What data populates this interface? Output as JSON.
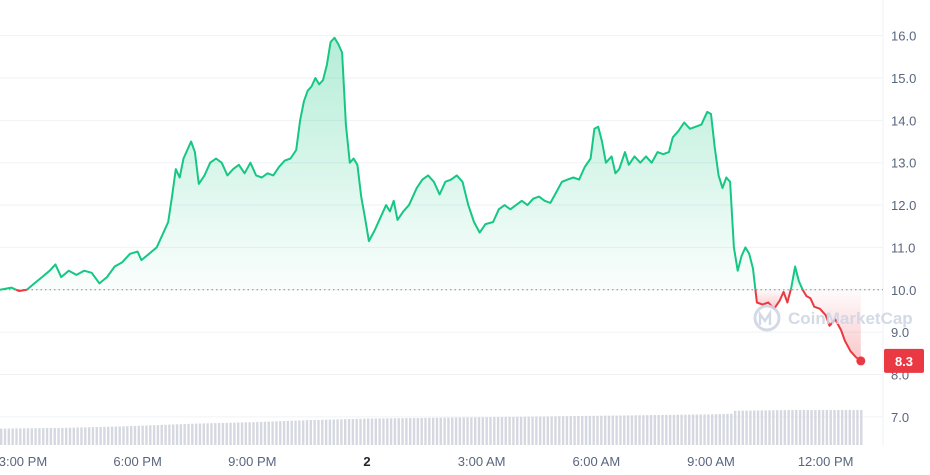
{
  "chart_data": {
    "type": "line",
    "baseline": 10.0,
    "y_range": [
      6.5,
      16.7
    ],
    "y_ticks": [
      "16.0",
      "15.0",
      "14.0",
      "13.0",
      "12.0",
      "11.0",
      "10.0",
      "9.0",
      "8.0",
      "7.0"
    ],
    "x_range": [
      -0.6,
      22.5
    ],
    "x_ticks": [
      {
        "x": 0,
        "label": "3:00 PM"
      },
      {
        "x": 3,
        "label": "6:00 PM"
      },
      {
        "x": 6,
        "label": "9:00 PM"
      },
      {
        "x": 9,
        "label": "2",
        "bold": true
      },
      {
        "x": 12,
        "label": "3:00 AM"
      },
      {
        "x": 15,
        "label": "6:00 AM"
      },
      {
        "x": 18,
        "label": "9:00 AM"
      },
      {
        "x": 21,
        "label": "12:00 PM"
      }
    ],
    "colors": {
      "up": "#16c784",
      "down": "#ea3943",
      "volume": "#d5d8e0",
      "grid": "#eff2f5"
    },
    "last_value_label": "8.3",
    "watermark": "CoinMarketCap",
    "points": [
      [
        -0.6,
        10.0
      ],
      [
        -0.3,
        10.05
      ],
      [
        -0.1,
        9.97
      ],
      [
        0.1,
        10.0
      ],
      [
        0.3,
        10.15
      ],
      [
        0.5,
        10.3
      ],
      [
        0.7,
        10.45
      ],
      [
        0.85,
        10.6
      ],
      [
        1.0,
        10.3
      ],
      [
        1.2,
        10.45
      ],
      [
        1.4,
        10.35
      ],
      [
        1.6,
        10.45
      ],
      [
        1.8,
        10.4
      ],
      [
        2.0,
        10.15
      ],
      [
        2.2,
        10.3
      ],
      [
        2.4,
        10.55
      ],
      [
        2.6,
        10.65
      ],
      [
        2.8,
        10.85
      ],
      [
        3.0,
        10.9
      ],
      [
        3.1,
        10.7
      ],
      [
        3.3,
        10.85
      ],
      [
        3.5,
        11.0
      ],
      [
        3.65,
        11.3
      ],
      [
        3.8,
        11.6
      ],
      [
        3.9,
        12.2
      ],
      [
        4.0,
        12.85
      ],
      [
        4.1,
        12.65
      ],
      [
        4.2,
        13.1
      ],
      [
        4.3,
        13.3
      ],
      [
        4.4,
        13.5
      ],
      [
        4.5,
        13.25
      ],
      [
        4.6,
        12.5
      ],
      [
        4.75,
        12.7
      ],
      [
        4.9,
        13.0
      ],
      [
        5.05,
        13.1
      ],
      [
        5.2,
        13.0
      ],
      [
        5.35,
        12.7
      ],
      [
        5.5,
        12.85
      ],
      [
        5.65,
        12.95
      ],
      [
        5.8,
        12.75
      ],
      [
        5.95,
        13.0
      ],
      [
        6.1,
        12.7
      ],
      [
        6.25,
        12.65
      ],
      [
        6.4,
        12.75
      ],
      [
        6.55,
        12.7
      ],
      [
        6.7,
        12.9
      ],
      [
        6.85,
        13.05
      ],
      [
        7.0,
        13.1
      ],
      [
        7.15,
        13.3
      ],
      [
        7.25,
        14.0
      ],
      [
        7.35,
        14.45
      ],
      [
        7.45,
        14.7
      ],
      [
        7.55,
        14.8
      ],
      [
        7.65,
        15.0
      ],
      [
        7.75,
        14.85
      ],
      [
        7.85,
        14.95
      ],
      [
        7.95,
        15.3
      ],
      [
        8.05,
        15.85
      ],
      [
        8.15,
        15.95
      ],
      [
        8.25,
        15.8
      ],
      [
        8.35,
        15.6
      ],
      [
        8.45,
        13.9
      ],
      [
        8.55,
        13.0
      ],
      [
        8.65,
        13.1
      ],
      [
        8.75,
        12.95
      ],
      [
        8.85,
        12.2
      ],
      [
        8.95,
        11.7
      ],
      [
        9.05,
        11.15
      ],
      [
        9.2,
        11.4
      ],
      [
        9.35,
        11.7
      ],
      [
        9.5,
        12.0
      ],
      [
        9.6,
        11.85
      ],
      [
        9.7,
        12.1
      ],
      [
        9.8,
        11.65
      ],
      [
        9.95,
        11.85
      ],
      [
        10.1,
        12.0
      ],
      [
        10.3,
        12.4
      ],
      [
        10.45,
        12.6
      ],
      [
        10.6,
        12.7
      ],
      [
        10.75,
        12.55
      ],
      [
        10.9,
        12.25
      ],
      [
        11.05,
        12.55
      ],
      [
        11.2,
        12.6
      ],
      [
        11.35,
        12.7
      ],
      [
        11.5,
        12.55
      ],
      [
        11.65,
        12.0
      ],
      [
        11.8,
        11.6
      ],
      [
        11.95,
        11.35
      ],
      [
        12.1,
        11.55
      ],
      [
        12.3,
        11.6
      ],
      [
        12.45,
        11.9
      ],
      [
        12.6,
        12.0
      ],
      [
        12.75,
        11.9
      ],
      [
        12.9,
        12.0
      ],
      [
        13.05,
        12.1
      ],
      [
        13.2,
        12.0
      ],
      [
        13.35,
        12.15
      ],
      [
        13.5,
        12.2
      ],
      [
        13.65,
        12.1
      ],
      [
        13.8,
        12.05
      ],
      [
        13.95,
        12.3
      ],
      [
        14.1,
        12.55
      ],
      [
        14.25,
        12.6
      ],
      [
        14.4,
        12.65
      ],
      [
        14.55,
        12.6
      ],
      [
        14.7,
        12.9
      ],
      [
        14.85,
        13.1
      ],
      [
        14.95,
        13.8
      ],
      [
        15.05,
        13.85
      ],
      [
        15.15,
        13.5
      ],
      [
        15.25,
        13.0
      ],
      [
        15.4,
        13.15
      ],
      [
        15.5,
        12.75
      ],
      [
        15.6,
        12.85
      ],
      [
        15.75,
        13.25
      ],
      [
        15.85,
        12.95
      ],
      [
        16.0,
        13.15
      ],
      [
        16.15,
        13.0
      ],
      [
        16.3,
        13.15
      ],
      [
        16.45,
        13.0
      ],
      [
        16.6,
        13.25
      ],
      [
        16.75,
        13.2
      ],
      [
        16.9,
        13.25
      ],
      [
        17.0,
        13.6
      ],
      [
        17.15,
        13.75
      ],
      [
        17.3,
        13.95
      ],
      [
        17.45,
        13.8
      ],
      [
        17.6,
        13.85
      ],
      [
        17.75,
        13.9
      ],
      [
        17.9,
        14.2
      ],
      [
        18.0,
        14.15
      ],
      [
        18.1,
        13.35
      ],
      [
        18.2,
        12.7
      ],
      [
        18.3,
        12.4
      ],
      [
        18.4,
        12.65
      ],
      [
        18.5,
        12.55
      ],
      [
        18.6,
        11.0
      ],
      [
        18.7,
        10.45
      ],
      [
        18.8,
        10.8
      ],
      [
        18.9,
        11.0
      ],
      [
        19.0,
        10.85
      ],
      [
        19.1,
        10.5
      ],
      [
        19.2,
        9.7
      ],
      [
        19.35,
        9.65
      ],
      [
        19.5,
        9.7
      ],
      [
        19.65,
        9.55
      ],
      [
        19.8,
        9.75
      ],
      [
        19.9,
        9.95
      ],
      [
        20.0,
        9.7
      ],
      [
        20.1,
        10.05
      ],
      [
        20.2,
        10.55
      ],
      [
        20.3,
        10.2
      ],
      [
        20.4,
        10.0
      ],
      [
        20.5,
        9.85
      ],
      [
        20.6,
        9.8
      ],
      [
        20.7,
        9.6
      ],
      [
        20.85,
        9.55
      ],
      [
        21.0,
        9.4
      ],
      [
        21.1,
        9.15
      ],
      [
        21.25,
        9.3
      ],
      [
        21.4,
        9.05
      ],
      [
        21.5,
        8.8
      ],
      [
        21.65,
        8.55
      ],
      [
        21.8,
        8.4
      ],
      [
        21.92,
        8.32
      ]
    ],
    "volume": {
      "y_range": [
        0,
        1
      ],
      "bar_step": 0.1,
      "levels": [
        [
          -0.6,
          0.23
        ],
        [
          1.0,
          0.24
        ],
        [
          2.5,
          0.26
        ],
        [
          3.5,
          0.28
        ],
        [
          4.5,
          0.3
        ],
        [
          6.0,
          0.32
        ],
        [
          7.5,
          0.35
        ],
        [
          9.0,
          0.37
        ],
        [
          10.5,
          0.38
        ],
        [
          12.0,
          0.39
        ],
        [
          13.5,
          0.4
        ],
        [
          15.0,
          0.41
        ],
        [
          16.5,
          0.42
        ],
        [
          18.0,
          0.43
        ],
        [
          18.55,
          0.44
        ],
        [
          18.6,
          0.48
        ],
        [
          20.0,
          0.49
        ],
        [
          22.0,
          0.49
        ]
      ]
    }
  }
}
